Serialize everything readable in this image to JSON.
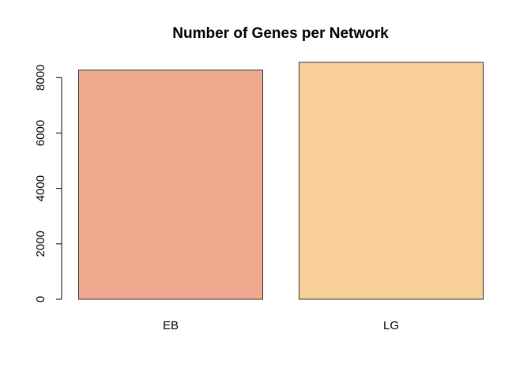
{
  "chart_data": {
    "type": "bar",
    "title": "Number of Genes per Network",
    "xlabel": "",
    "ylabel": "",
    "categories": [
      "EB",
      "LG"
    ],
    "values": [
      8270,
      8550
    ],
    "colors": [
      "#f0aa90",
      "#f9cf98"
    ],
    "ylim": [
      0,
      8550
    ],
    "yticks": [
      0,
      2000,
      4000,
      6000,
      8000
    ],
    "ytick_labels": [
      "0",
      "2000",
      "4000",
      "6000",
      "8000"
    ],
    "grid": false,
    "legend": "none"
  }
}
